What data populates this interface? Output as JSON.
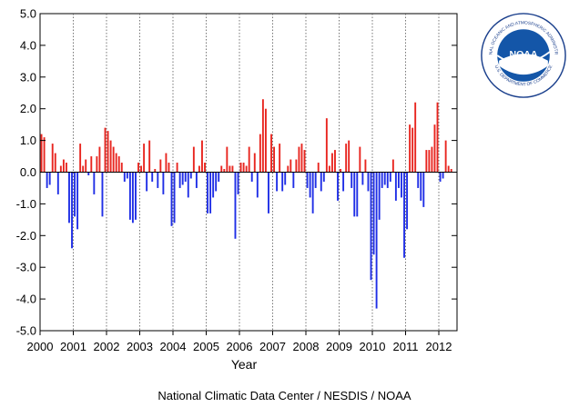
{
  "chart_data": {
    "type": "bar",
    "title": "",
    "xlabel": "Year",
    "ylabel": "",
    "ylim": [
      -5.0,
      5.0
    ],
    "yticks": [
      "5.0",
      "4.0",
      "3.0",
      "2.0",
      "1.0",
      "0.0",
      "-1.0",
      "-2.0",
      "-3.0",
      "-4.0",
      "-5.0"
    ],
    "years": [
      "2000",
      "2001",
      "2002",
      "2003",
      "2004",
      "2005",
      "2006",
      "2007",
      "2008",
      "2009",
      "2010",
      "2011",
      "2012"
    ],
    "start": "2000-01",
    "positive_color": "#e8251f",
    "negative_color": "#1f2ee6",
    "values": [
      1.2,
      1.1,
      -0.5,
      -0.4,
      0.9,
      0.6,
      -0.7,
      0.2,
      0.4,
      0.3,
      -1.6,
      -2.4,
      -1.4,
      -1.8,
      0.9,
      0.2,
      0.4,
      -0.1,
      0.5,
      -0.7,
      0.5,
      0.8,
      -1.4,
      1.4,
      1.3,
      1.0,
      0.8,
      0.6,
      0.5,
      0.3,
      -0.3,
      -0.2,
      -1.5,
      -1.6,
      -1.5,
      0.3,
      0.2,
      0.9,
      -0.6,
      1.0,
      -0.3,
      0.1,
      -0.5,
      0.4,
      -0.7,
      0.6,
      0.3,
      -1.7,
      -1.6,
      0.3,
      -0.5,
      -0.4,
      -0.3,
      -0.8,
      -0.2,
      0.8,
      -0.5,
      0.2,
      1.0,
      0.3,
      -1.3,
      -1.3,
      -0.8,
      -0.6,
      -0.3,
      0.2,
      0.1,
      0.8,
      0.2,
      0.2,
      -2.1,
      -0.7,
      0.3,
      0.3,
      0.2,
      0.8,
      -0.3,
      0.6,
      -0.8,
      1.2,
      2.3,
      2.0,
      -1.3,
      1.2,
      0.8,
      -0.6,
      0.9,
      -0.6,
      -0.4,
      0.2,
      0.4,
      -0.5,
      0.4,
      0.8,
      0.9,
      0.7,
      -0.5,
      -0.8,
      -1.3,
      -0.5,
      0.3,
      -0.6,
      -0.3,
      1.7,
      0.2,
      0.6,
      0.7,
      -0.9,
      0.1,
      -0.6,
      0.9,
      1.0,
      -0.5,
      -1.4,
      -1.4,
      0.8,
      -0.4,
      0.4,
      -0.6,
      -3.4,
      -2.6,
      -4.3,
      -1.5,
      -0.5,
      -0.4,
      -0.5,
      -0.3,
      0.4,
      -0.9,
      -0.5,
      -0.8,
      -2.7,
      -1.8,
      1.5,
      1.4,
      2.2,
      -0.5,
      -0.9,
      -1.1,
      0.7,
      0.7,
      0.8,
      1.5,
      2.2,
      -0.3,
      -0.2,
      1.0,
      0.2,
      0.1
    ]
  },
  "credit": "National Climatic Data Center / NESDIS / NOAA",
  "logo": {
    "name": "NOAA",
    "ring_text_top": "NATIONAL OCEANIC AND ATMOSPHERIC ADMINISTRATION",
    "ring_text_bottom": "U.S. DEPARTMENT OF COMMERCE"
  }
}
